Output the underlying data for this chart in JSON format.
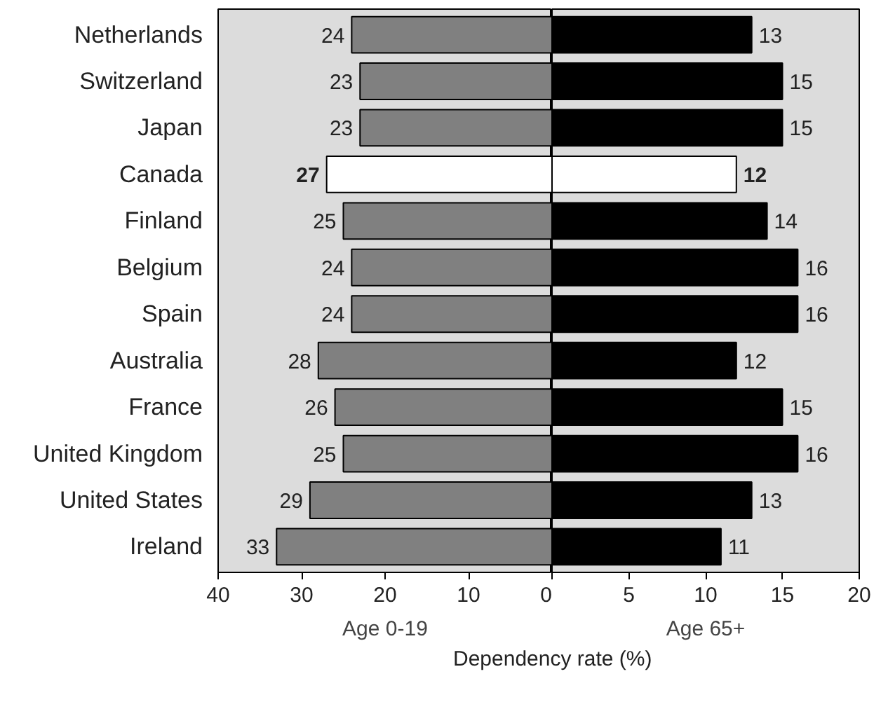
{
  "chart_data": [
    {
      "type": "bar",
      "orientation": "horizontal",
      "xlabel": "Age 0-19",
      "categories": [
        "Netherlands",
        "Switzerland",
        "Japan",
        "Canada",
        "Finland",
        "Belgium",
        "Spain",
        "Australia",
        "France",
        "United Kingdom",
        "United States",
        "Ireland"
      ],
      "values": [
        24,
        23,
        23,
        27,
        25,
        24,
        24,
        28,
        26,
        25,
        29,
        33
      ],
      "colors": [
        "#808080",
        "#808080",
        "#808080",
        "#ffffff",
        "#808080",
        "#808080",
        "#808080",
        "#808080",
        "#808080",
        "#808080",
        "#808080",
        "#808080"
      ],
      "xlim": [
        40,
        0
      ],
      "xticks": [
        40,
        30,
        20,
        10,
        0
      ],
      "data_labels": true,
      "grid": false
    },
    {
      "type": "bar",
      "orientation": "horizontal",
      "xlabel": "Age 65+",
      "categories": [
        null,
        null,
        null,
        null,
        null,
        null,
        null,
        null,
        null,
        null,
        null,
        null
      ],
      "values": [
        13,
        15,
        15,
        12,
        14,
        16,
        16,
        12,
        15,
        16,
        13,
        11
      ],
      "colors": [
        "#000000",
        "#000000",
        "#000000",
        "#ffffff",
        "#000000",
        "#000000",
        "#000000",
        "#000000",
        "#000000",
        "#000000",
        "#000000",
        "#000000"
      ],
      "xlim": [
        0,
        20
      ],
      "xticks": [
        {
          "value": 0,
          "label": null
        },
        5,
        10,
        15,
        20
      ],
      "data_labels": true,
      "grid": false,
      "annotations": [
        "Dependency rate (%)"
      ]
    }
  ]
}
